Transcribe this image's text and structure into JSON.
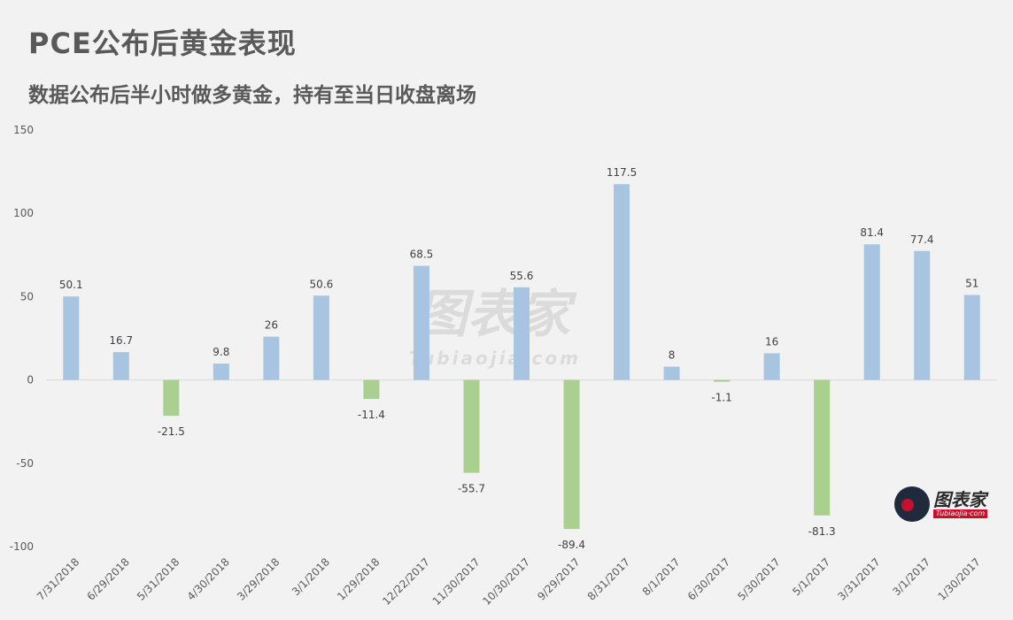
{
  "title": "PCE公布后黄金表现",
  "subtitle": "数据公布后半小时做多黄金，持有至当日收盘离场",
  "watermark": {
    "main": "图表家",
    "sub": "Tubiaojia·com"
  },
  "logo": {
    "name": "图表家",
    "sub": "Tubiaojia·com"
  },
  "colors": {
    "positive": "#a7c4e0",
    "negative": "#a9d08e",
    "axis": "#d9d9d9",
    "background": "#f2f2f2"
  },
  "chart_data": {
    "type": "bar",
    "categories": [
      "7/31/2018",
      "6/29/2018",
      "5/31/2018",
      "4/30/2018",
      "3/29/2018",
      "3/1/2018",
      "1/29/2018",
      "12/22/2017",
      "11/30/2017",
      "10/30/2017",
      "9/29/2017",
      "8/31/2017",
      "8/1/2017",
      "6/30/2017",
      "5/30/2017",
      "5/1/2017",
      "3/31/2017",
      "3/1/2017",
      "1/30/2017"
    ],
    "values": [
      50.1,
      16.7,
      -21.5,
      9.8,
      26,
      50.6,
      -11.4,
      68.5,
      -55.7,
      55.6,
      -89.4,
      117.5,
      8,
      -1.1,
      16,
      -81.3,
      81.4,
      77.4,
      51
    ],
    "value_labels": [
      "50.1",
      "16.7",
      "-21.5",
      "9.8",
      "26",
      "50.6",
      "-11.4",
      "68.5",
      "-55.7",
      "55.6",
      "-89.4",
      "117.5",
      "8",
      "-1.1",
      "16",
      "-81.3",
      "81.4",
      "77.4",
      "51"
    ],
    "yticks": [
      150,
      100,
      50,
      0,
      -50,
      -100
    ],
    "ytick_labels": [
      "150",
      "100",
      "50",
      "0",
      "-50",
      "-100"
    ],
    "ylim": [
      -100,
      150
    ],
    "grid": false,
    "legend": "none"
  }
}
